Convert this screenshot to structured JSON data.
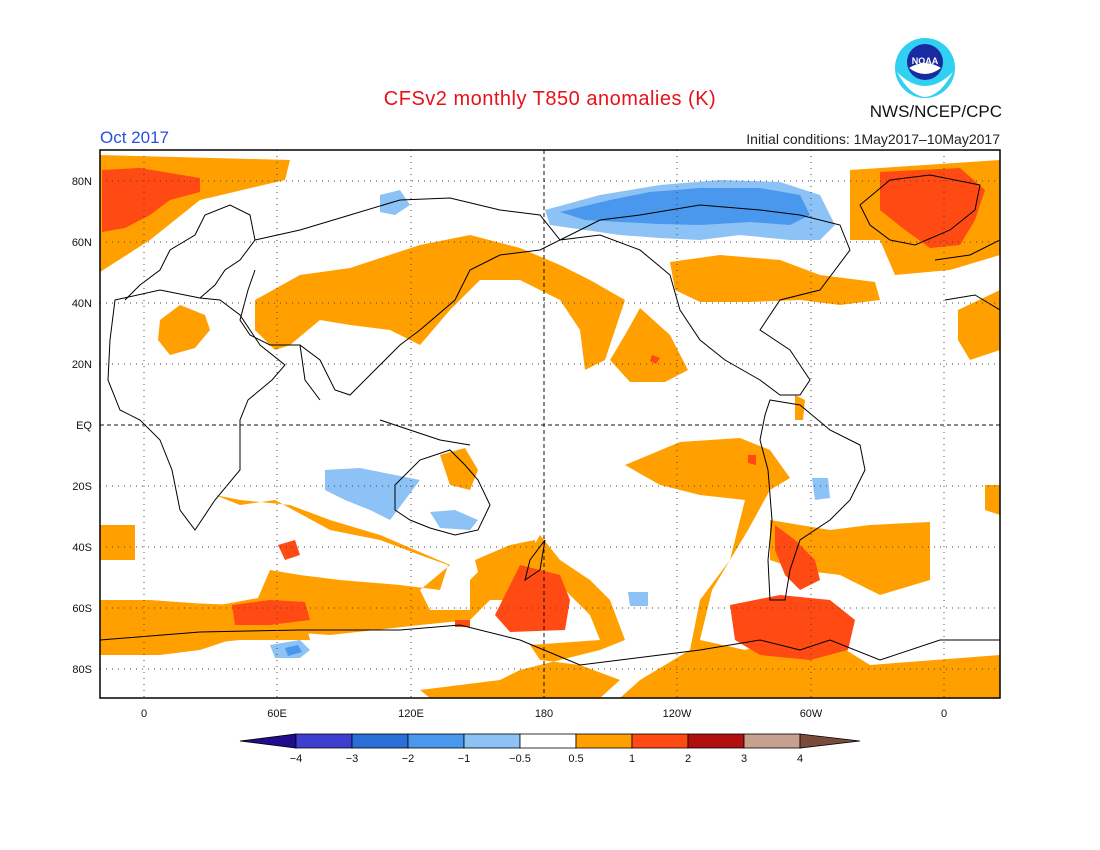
{
  "title": "CFSv2 monthly T850 anomalies (K)",
  "agency": "NWS/NCEP/CPC",
  "logo_text": "NOAA",
  "valid_month": "Oct 2017",
  "initial_conditions": "Initial conditions: 1May2017–10May2017",
  "map": {
    "lat_labels": [
      "80N",
      "60N",
      "40N",
      "20N",
      "EQ",
      "20S",
      "40S",
      "60S",
      "80S"
    ],
    "lon_labels": [
      "0",
      "60E",
      "120E",
      "180",
      "120W",
      "60W",
      "0"
    ],
    "projection": "cylindrical equidistant, centered 180"
  },
  "colorbar": {
    "labels": [
      "−4",
      "−3",
      "−2",
      "−1",
      "−0.5",
      "0.5",
      "1",
      "2",
      "3",
      "4"
    ],
    "colors": [
      "#1f0d8c",
      "#3f3fcf",
      "#2a6fd8",
      "#4a98ee",
      "#8cc2f5",
      "#ffffff",
      "#ffa000",
      "#ff4a14",
      "#b01010",
      "#c8a090",
      "#7a4a3a"
    ]
  },
  "anomaly_colors": {
    "neg_0_5": "#8cc2f5",
    "neg_1": "#4a98ee",
    "pos_0_5": "#ffa000",
    "pos_1": "#ff4a14"
  }
}
